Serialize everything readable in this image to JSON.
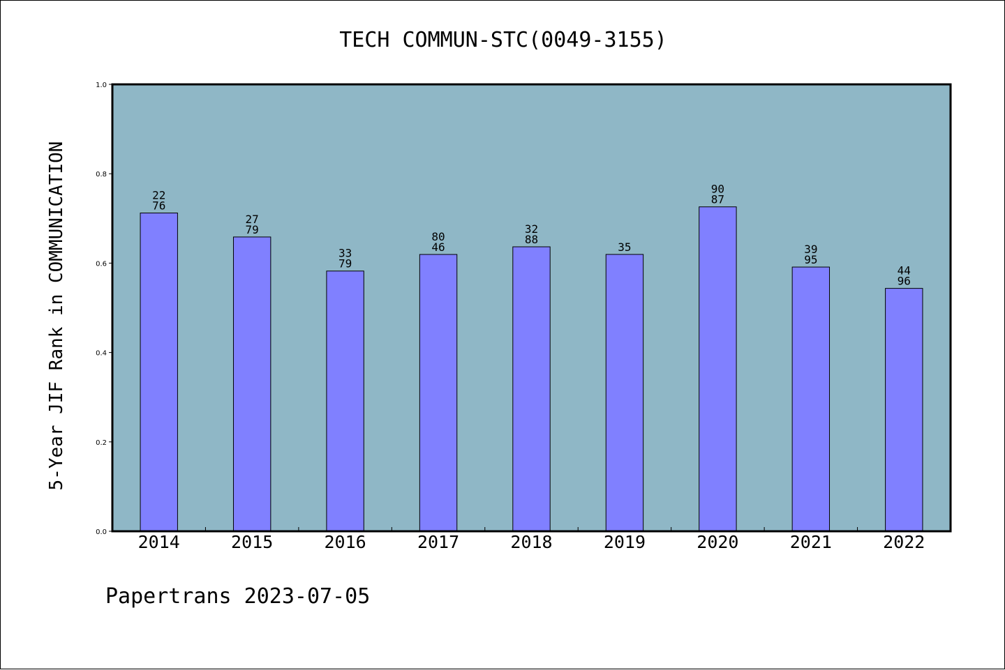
{
  "chart_data": {
    "type": "bar",
    "title": "TECH COMMUN-STC(0049-3155)",
    "ylabel": "5-Year JIF Rank in COMMUNICATION",
    "xlabel": "",
    "ylim": [
      0,
      1.0
    ],
    "yticks": [
      "0.0",
      "0.2",
      "0.4",
      "0.6",
      "0.8",
      "1.0"
    ],
    "categories": [
      "2014",
      "2015",
      "2016",
      "2017",
      "2018",
      "2019",
      "2020",
      "2021",
      "2022"
    ],
    "values": [
      0.7122,
      0.6585,
      0.5823,
      0.6194,
      0.6365,
      0.6195,
      0.7259,
      0.5912,
      0.5435
    ],
    "data_labels": [
      [
        "22",
        "76"
      ],
      [
        "27",
        "79"
      ],
      [
        "33",
        "79"
      ],
      [
        "80",
        "46"
      ],
      [
        "32",
        "88"
      ],
      [
        "35"
      ],
      [
        "90",
        "87"
      ],
      [
        "39",
        "95"
      ],
      [
        "44",
        "96"
      ]
    ],
    "grid": false,
    "colors": {
      "plot_background": "#8fb7c6",
      "bar_fill": "#8080ff",
      "bar_edge": "#000000",
      "frame": "#000000"
    }
  },
  "footer": {
    "text": "Papertrans 2023-07-05"
  }
}
